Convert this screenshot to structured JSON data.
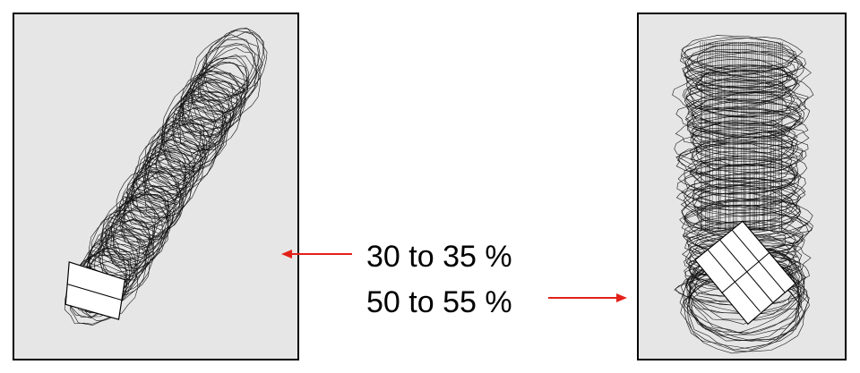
{
  "labels": {
    "first": "30 to 35 %",
    "second": "50 to 55 %"
  },
  "colors": {
    "arrow": "#e32119",
    "panel_background": "#e6e6e6",
    "panel_border": "#000000"
  }
}
